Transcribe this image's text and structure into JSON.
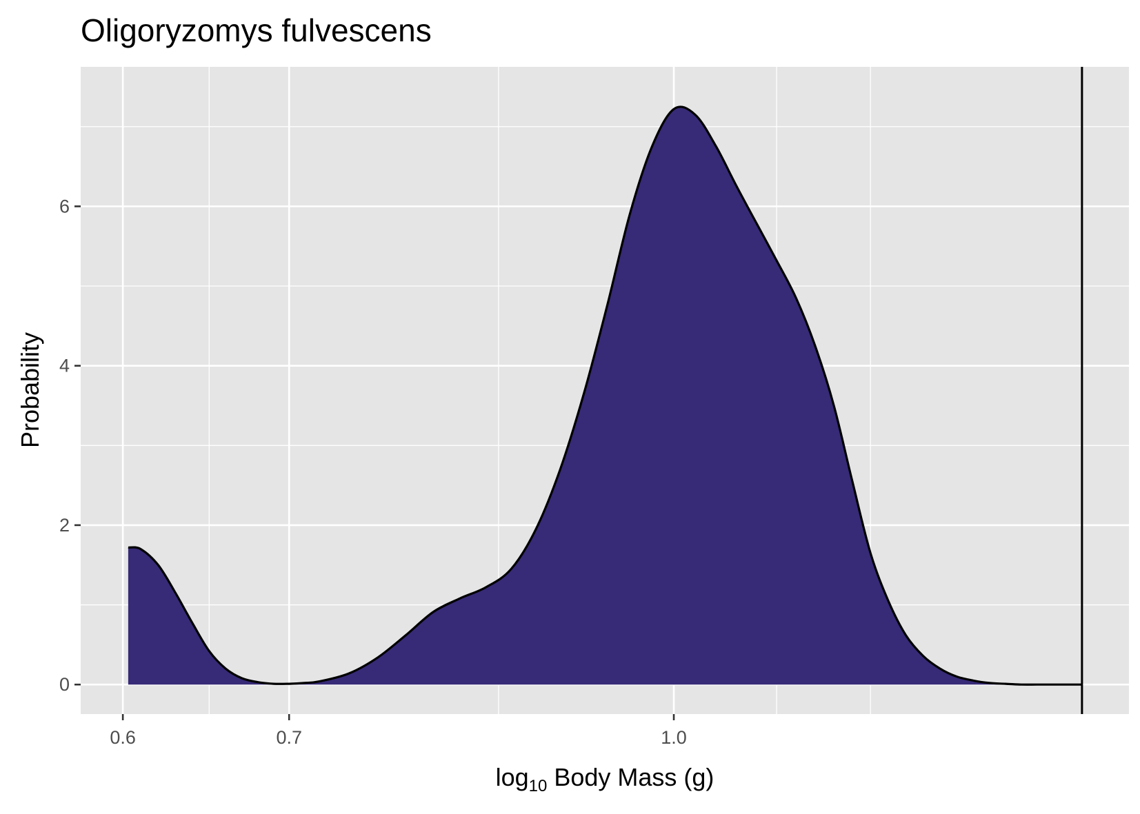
{
  "chart_data": {
    "type": "area",
    "title": "Oligoryzomys fulvescens",
    "xlabel": {
      "prefix": "log",
      "subscript": "10",
      "suffix": " Body Mass (g)"
    },
    "ylabel": "Probability",
    "x_scale": "log10",
    "x_ticks": [
      {
        "value": 0.6,
        "label": "0.6"
      },
      {
        "value": 0.7,
        "label": "0.7"
      },
      {
        "value": 1.0,
        "label": "1.0"
      }
    ],
    "x_minor_ticks": [
      0.65,
      0.85,
      1.1,
      1.2
    ],
    "y_ticks": [
      {
        "value": 0,
        "label": "0"
      },
      {
        "value": 2,
        "label": "2"
      },
      {
        "value": 4,
        "label": "4"
      },
      {
        "value": 6,
        "label": "6"
      }
    ],
    "y_minor_ticks": [
      1,
      3,
      5,
      7
    ],
    "xlim": [
      0.577,
      1.525
    ],
    "ylim": [
      -0.37,
      7.75
    ],
    "grid": true,
    "series": [
      {
        "fill": "#372a77",
        "outline": "#000000",
        "x": [
          0.603,
          0.61,
          0.62,
          0.63,
          0.64,
          0.65,
          0.66,
          0.67,
          0.68,
          0.69,
          0.7,
          0.71,
          0.72,
          0.74,
          0.76,
          0.78,
          0.8,
          0.82,
          0.84,
          0.86,
          0.88,
          0.9,
          0.92,
          0.94,
          0.96,
          0.98,
          1.0,
          1.02,
          1.04,
          1.06,
          1.08,
          1.1,
          1.12,
          1.14,
          1.16,
          1.18,
          1.2,
          1.22,
          1.24,
          1.26,
          1.28,
          1.3,
          1.32,
          1.34,
          1.36,
          1.38,
          1.4,
          1.42,
          1.44,
          1.46
        ],
        "y": [
          1.72,
          1.7,
          1.5,
          1.15,
          0.77,
          0.42,
          0.2,
          0.08,
          0.03,
          0.01,
          0.01,
          0.02,
          0.04,
          0.14,
          0.34,
          0.62,
          0.91,
          1.08,
          1.22,
          1.45,
          1.95,
          2.7,
          3.65,
          4.75,
          5.9,
          6.75,
          7.22,
          7.15,
          6.75,
          6.25,
          5.78,
          5.32,
          4.85,
          4.25,
          3.5,
          2.55,
          1.65,
          1.05,
          0.62,
          0.36,
          0.2,
          0.1,
          0.05,
          0.02,
          0.01,
          0,
          0,
          0,
          0,
          0
        ],
        "note_hidden": true
      }
    ],
    "vline": {
      "x": 1.46
    }
  }
}
